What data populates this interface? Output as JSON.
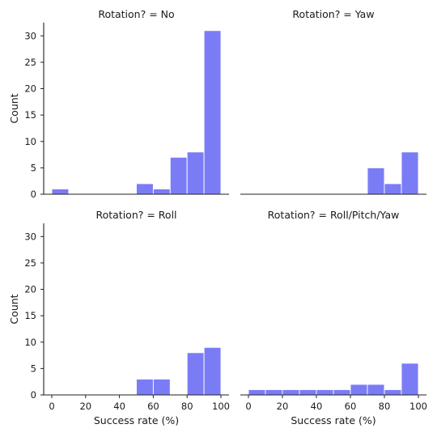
{
  "chart_data": {
    "type": "bar",
    "style": {
      "bar_color": "#7a7cf6",
      "axis_color": "#222222",
      "background": "#ffffff"
    },
    "x": {
      "label": "Success rate (%)",
      "range": [
        0,
        100
      ],
      "ticks": [
        0,
        20,
        40,
        60,
        80,
        100
      ],
      "tick_labels": [
        "0",
        "20",
        "40",
        "60",
        "80",
        "100"
      ],
      "bin_edges": [
        0,
        10,
        20,
        30,
        40,
        50,
        60,
        70,
        80,
        90,
        100
      ]
    },
    "y": {
      "label": "Count",
      "range": [
        0,
        32.5
      ],
      "ticks": [
        0,
        5,
        10,
        15,
        20,
        25,
        30
      ],
      "tick_labels": [
        "0",
        "5",
        "10",
        "15",
        "20",
        "25",
        "30"
      ]
    },
    "grid": false,
    "panels": [
      {
        "title": "Rotation? = No",
        "bins": [
          {
            "start": 0,
            "end": 10,
            "count": 1
          },
          {
            "start": 50,
            "end": 60,
            "count": 2
          },
          {
            "start": 60,
            "end": 70,
            "count": 1
          },
          {
            "start": 70,
            "end": 80,
            "count": 7
          },
          {
            "start": 80,
            "end": 90,
            "count": 8
          },
          {
            "start": 90,
            "end": 100,
            "count": 31
          }
        ]
      },
      {
        "title": "Rotation? = Yaw",
        "bins": [
          {
            "start": 70,
            "end": 80,
            "count": 5
          },
          {
            "start": 80,
            "end": 90,
            "count": 2
          },
          {
            "start": 90,
            "end": 100,
            "count": 8
          }
        ]
      },
      {
        "title": "Rotation? = Roll",
        "bins": [
          {
            "start": 50,
            "end": 60,
            "count": 3
          },
          {
            "start": 60,
            "end": 70,
            "count": 3
          },
          {
            "start": 80,
            "end": 90,
            "count": 8
          },
          {
            "start": 90,
            "end": 100,
            "count": 9
          }
        ]
      },
      {
        "title": "Rotation? = Roll/Pitch/Yaw",
        "bins": [
          {
            "start": 0,
            "end": 10,
            "count": 1
          },
          {
            "start": 10,
            "end": 20,
            "count": 1
          },
          {
            "start": 20,
            "end": 30,
            "count": 1
          },
          {
            "start": 30,
            "end": 40,
            "count": 1
          },
          {
            "start": 40,
            "end": 50,
            "count": 1
          },
          {
            "start": 50,
            "end": 60,
            "count": 1
          },
          {
            "start": 60,
            "end": 70,
            "count": 2
          },
          {
            "start": 70,
            "end": 80,
            "count": 2
          },
          {
            "start": 80,
            "end": 90,
            "count": 1
          },
          {
            "start": 90,
            "end": 100,
            "count": 6
          }
        ]
      }
    ]
  }
}
